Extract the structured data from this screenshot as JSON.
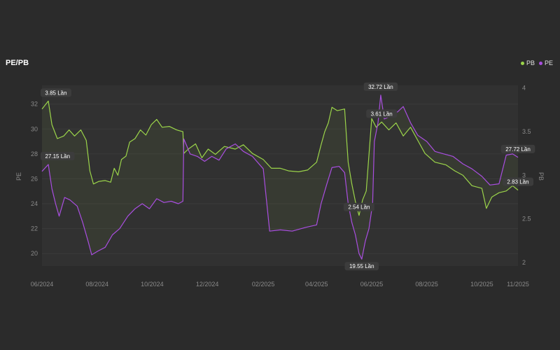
{
  "title": "PE/PB",
  "legend": [
    {
      "name": "PB",
      "color": "#9bd44a"
    },
    {
      "name": "PE",
      "color": "#a94ee0"
    }
  ],
  "chart_data": {
    "type": "line",
    "title": "PE/PB",
    "x_ticks": [
      "06/2024",
      "08/2024",
      "10/2024",
      "12/2024",
      "02/2025",
      "04/2025",
      "06/2025",
      "08/2025",
      "10/2025",
      "11/2025"
    ],
    "x_range": [
      "2024-06-01",
      "2025-11-10"
    ],
    "y_left": {
      "label": "PE",
      "ticks": [
        20,
        22,
        24,
        26,
        28,
        30,
        32
      ],
      "range": [
        19,
        33.5
      ]
    },
    "y_right": {
      "label": "PB",
      "ticks": [
        2,
        2.5,
        3,
        3.5,
        4
      ],
      "range": [
        1.96,
        4.03
      ]
    },
    "grid": true,
    "legend_position": "top-right",
    "series": [
      {
        "name": "PB",
        "color": "#9bd44a",
        "axis": "right",
        "points": [
          [
            "2024-06-01",
            3.76
          ],
          [
            "2024-06-08",
            3.85
          ],
          [
            "2024-06-12",
            3.58
          ],
          [
            "2024-06-18",
            3.42
          ],
          [
            "2024-06-25",
            3.45
          ],
          [
            "2024-07-01",
            3.52
          ],
          [
            "2024-07-07",
            3.45
          ],
          [
            "2024-07-14",
            3.52
          ],
          [
            "2024-07-20",
            3.4
          ],
          [
            "2024-07-24",
            3.05
          ],
          [
            "2024-07-28",
            2.9
          ],
          [
            "2024-08-03",
            2.93
          ],
          [
            "2024-08-10",
            2.94
          ],
          [
            "2024-08-16",
            2.92
          ],
          [
            "2024-08-20",
            3.08
          ],
          [
            "2024-08-24",
            3.0
          ],
          [
            "2024-08-28",
            3.18
          ],
          [
            "2024-09-02",
            3.22
          ],
          [
            "2024-09-06",
            3.38
          ],
          [
            "2024-09-12",
            3.42
          ],
          [
            "2024-09-18",
            3.52
          ],
          [
            "2024-09-24",
            3.46
          ],
          [
            "2024-09-30",
            3.58
          ],
          [
            "2024-10-06",
            3.64
          ],
          [
            "2024-10-12",
            3.55
          ],
          [
            "2024-10-20",
            3.56
          ],
          [
            "2024-10-28",
            3.52
          ],
          [
            "2024-11-04",
            3.5
          ],
          [
            "2024-11-05",
            3.25
          ],
          [
            "2024-11-10",
            3.3
          ],
          [
            "2024-11-18",
            3.36
          ],
          [
            "2024-11-25",
            3.2
          ],
          [
            "2024-12-02",
            3.3
          ],
          [
            "2024-12-10",
            3.24
          ],
          [
            "2024-12-20",
            3.33
          ],
          [
            "2025-01-01",
            3.3
          ],
          [
            "2025-01-10",
            3.35
          ],
          [
            "2025-01-20",
            3.25
          ],
          [
            "2025-02-01",
            3.18
          ],
          [
            "2025-02-10",
            3.08
          ],
          [
            "2025-02-20",
            3.08
          ],
          [
            "2025-03-01",
            3.05
          ],
          [
            "2025-03-12",
            3.04
          ],
          [
            "2025-03-22",
            3.06
          ],
          [
            "2025-04-01",
            3.15
          ],
          [
            "2025-04-06",
            3.35
          ],
          [
            "2025-04-10",
            3.5
          ],
          [
            "2025-04-14",
            3.6
          ],
          [
            "2025-04-18",
            3.78
          ],
          [
            "2025-04-24",
            3.74
          ],
          [
            "2025-05-02",
            3.76
          ],
          [
            "2025-05-06",
            3.15
          ],
          [
            "2025-05-10",
            2.9
          ],
          [
            "2025-05-14",
            2.7
          ],
          [
            "2025-05-18",
            2.54
          ],
          [
            "2025-05-22",
            2.72
          ],
          [
            "2025-05-26",
            2.82
          ],
          [
            "2025-06-01",
            3.65
          ],
          [
            "2025-06-06",
            3.55
          ],
          [
            "2025-06-12",
            3.61
          ],
          [
            "2025-06-20",
            3.52
          ],
          [
            "2025-06-28",
            3.6
          ],
          [
            "2025-07-06",
            3.45
          ],
          [
            "2025-07-14",
            3.55
          ],
          [
            "2025-07-22",
            3.4
          ],
          [
            "2025-07-30",
            3.25
          ],
          [
            "2025-08-10",
            3.15
          ],
          [
            "2025-08-22",
            3.12
          ],
          [
            "2025-09-01",
            3.05
          ],
          [
            "2025-09-10",
            3.0
          ],
          [
            "2025-09-20",
            2.88
          ],
          [
            "2025-10-01",
            2.85
          ],
          [
            "2025-10-06",
            2.62
          ],
          [
            "2025-10-12",
            2.75
          ],
          [
            "2025-10-20",
            2.8
          ],
          [
            "2025-10-28",
            2.82
          ],
          [
            "2025-11-04",
            2.88
          ],
          [
            "2025-11-10",
            2.83
          ]
        ]
      },
      {
        "name": "PE",
        "color": "#a94ee0",
        "axis": "left",
        "points": [
          [
            "2024-06-01",
            26.6
          ],
          [
            "2024-06-08",
            27.15
          ],
          [
            "2024-06-12",
            25.2
          ],
          [
            "2024-06-16",
            24.0
          ],
          [
            "2024-06-20",
            23.0
          ],
          [
            "2024-06-26",
            24.5
          ],
          [
            "2024-07-02",
            24.3
          ],
          [
            "2024-07-10",
            23.8
          ],
          [
            "2024-07-16",
            22.5
          ],
          [
            "2024-07-22",
            21.0
          ],
          [
            "2024-07-26",
            19.9
          ],
          [
            "2024-08-02",
            20.2
          ],
          [
            "2024-08-10",
            20.5
          ],
          [
            "2024-08-18",
            21.5
          ],
          [
            "2024-08-26",
            22.0
          ],
          [
            "2024-09-04",
            23.0
          ],
          [
            "2024-09-12",
            23.6
          ],
          [
            "2024-09-20",
            24.0
          ],
          [
            "2024-09-28",
            23.6
          ],
          [
            "2024-10-06",
            24.4
          ],
          [
            "2024-10-14",
            24.1
          ],
          [
            "2024-10-22",
            24.2
          ],
          [
            "2024-10-30",
            24.0
          ],
          [
            "2024-11-04",
            24.2
          ],
          [
            "2024-11-05",
            29.2
          ],
          [
            "2024-11-12",
            28.0
          ],
          [
            "2024-11-20",
            27.8
          ],
          [
            "2024-11-28",
            27.4
          ],
          [
            "2024-12-06",
            27.8
          ],
          [
            "2024-12-14",
            27.5
          ],
          [
            "2024-12-22",
            28.4
          ],
          [
            "2025-01-01",
            28.8
          ],
          [
            "2025-01-10",
            28.2
          ],
          [
            "2025-01-20",
            27.8
          ],
          [
            "2025-02-01",
            26.8
          ],
          [
            "2025-02-08",
            21.8
          ],
          [
            "2025-02-20",
            21.9
          ],
          [
            "2025-03-05",
            21.8
          ],
          [
            "2025-03-20",
            22.1
          ],
          [
            "2025-04-01",
            22.3
          ],
          [
            "2025-04-06",
            24.0
          ],
          [
            "2025-04-12",
            25.5
          ],
          [
            "2025-04-18",
            26.9
          ],
          [
            "2025-04-26",
            27.0
          ],
          [
            "2025-05-02",
            26.5
          ],
          [
            "2025-05-06",
            24.0
          ],
          [
            "2025-05-10",
            22.5
          ],
          [
            "2025-05-14",
            21.5
          ],
          [
            "2025-05-18",
            20.0
          ],
          [
            "2025-05-21",
            19.55
          ],
          [
            "2025-05-25",
            21.0
          ],
          [
            "2025-05-29",
            22.0
          ],
          [
            "2025-06-02",
            24.0
          ],
          [
            "2025-06-04",
            29.0
          ],
          [
            "2025-06-08",
            30.5
          ],
          [
            "2025-06-11",
            32.72
          ],
          [
            "2025-06-15",
            30.8
          ],
          [
            "2025-06-22",
            31.0
          ],
          [
            "2025-06-30",
            31.4
          ],
          [
            "2025-07-06",
            31.8
          ],
          [
            "2025-07-14",
            30.5
          ],
          [
            "2025-07-22",
            29.5
          ],
          [
            "2025-08-01",
            29.0
          ],
          [
            "2025-08-10",
            28.2
          ],
          [
            "2025-08-20",
            28.0
          ],
          [
            "2025-08-30",
            27.8
          ],
          [
            "2025-09-10",
            27.2
          ],
          [
            "2025-09-20",
            26.8
          ],
          [
            "2025-10-01",
            26.2
          ],
          [
            "2025-10-10",
            25.5
          ],
          [
            "2025-10-20",
            25.6
          ],
          [
            "2025-10-28",
            27.9
          ],
          [
            "2025-11-04",
            28.0
          ],
          [
            "2025-11-10",
            27.72
          ]
        ]
      }
    ],
    "annotations": [
      {
        "series": "PB",
        "date": "2024-06-08",
        "value": 3.85,
        "text": "3.85 Lần",
        "anchor": "above"
      },
      {
        "series": "PE",
        "date": "2024-06-08",
        "value": 27.15,
        "text": "27.15 Lần",
        "anchor": "above"
      },
      {
        "series": "PE",
        "date": "2025-06-11",
        "value": 32.72,
        "text": "32.72 Lần",
        "anchor": "above"
      },
      {
        "series": "PB",
        "date": "2025-06-12",
        "value": 3.61,
        "text": "3.61 Lần",
        "anchor": "above"
      },
      {
        "series": "PB",
        "date": "2025-05-18",
        "value": 2.54,
        "text": "2.54 Lần",
        "anchor": "above"
      },
      {
        "series": "PE",
        "date": "2025-05-21",
        "value": 19.55,
        "text": "19.55 Lần",
        "anchor": "below"
      },
      {
        "series": "PE",
        "date": "2025-11-10",
        "value": 27.72,
        "text": "27.72 Lần",
        "anchor": "above"
      },
      {
        "series": "PB",
        "date": "2025-11-10",
        "value": 2.83,
        "text": "2.83 Lần",
        "anchor": "above"
      }
    ]
  }
}
